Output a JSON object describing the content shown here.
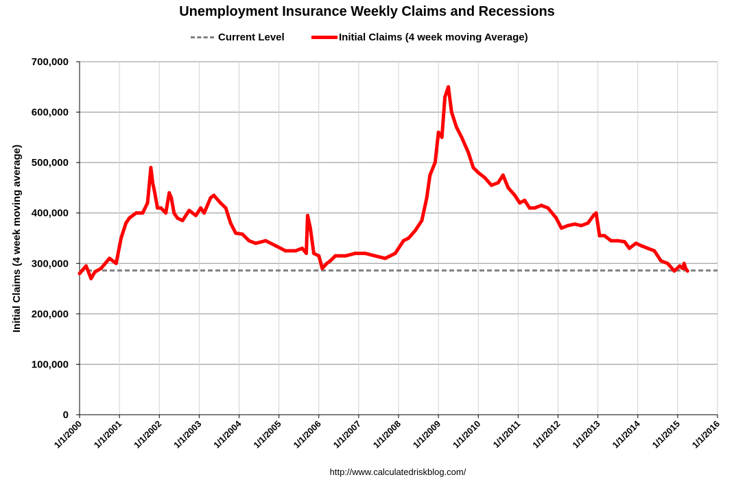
{
  "chart_data": {
    "type": "line",
    "title": "Unemployment Insurance Weekly Claims and Recessions",
    "ylabel": "Initial Claims (4 week moving average)",
    "xlabel": "",
    "ylim": [
      0,
      700000
    ],
    "xlim": [
      "2000-01-01",
      "2016-01-01"
    ],
    "grid": true,
    "legend_position": "top",
    "y_tick_labels": [
      "0",
      "100,000",
      "200,000",
      "300,000",
      "400,000",
      "500,000",
      "600,000",
      "700,000"
    ],
    "x_tick_labels": [
      "1/1/2000",
      "1/1/2001",
      "1/1/2002",
      "1/1/2003",
      "1/1/2004",
      "1/1/2005",
      "1/1/2006",
      "1/1/2007",
      "1/1/2008",
      "1/1/2009",
      "1/1/2010",
      "1/1/2011",
      "1/1/2012",
      "1/1/2013",
      "1/1/2014",
      "1/1/2015",
      "1/1/2016"
    ],
    "series": [
      {
        "name": "Current Level",
        "color": "#7f7f7f",
        "style": "dashed",
        "y": 286000
      },
      {
        "name": "Initial Claims (4 week moving Average)",
        "color": "#ff0000",
        "style": "solid",
        "x": [
          "2000-01-01",
          "2000-03-01",
          "2000-04-15",
          "2000-05-20",
          "2000-07-15",
          "2000-10-01",
          "2000-12-01",
          "2001-01-15",
          "2001-03-01",
          "2001-04-01",
          "2001-06-01",
          "2001-08-01",
          "2001-09-15",
          "2001-10-15",
          "2001-11-01",
          "2001-11-20",
          "2001-12-15",
          "2002-01-15",
          "2002-03-01",
          "2002-04-01",
          "2002-04-20",
          "2002-05-15",
          "2002-06-15",
          "2002-08-01",
          "2002-10-01",
          "2002-12-01",
          "2003-01-15",
          "2003-02-15",
          "2003-04-15",
          "2003-05-15",
          "2003-07-15",
          "2003-09-01",
          "2003-10-15",
          "2003-12-01",
          "2004-02-01",
          "2004-04-01",
          "2004-06-01",
          "2004-09-01",
          "2004-12-01",
          "2005-01-15",
          "2005-03-01",
          "2005-06-01",
          "2005-08-01",
          "2005-09-08",
          "2005-09-20",
          "2005-10-15",
          "2005-11-15",
          "2006-01-01",
          "2006-02-01",
          "2006-03-15",
          "2006-04-15",
          "2006-06-01",
          "2006-09-01",
          "2006-12-01",
          "2007-03-01",
          "2007-06-01",
          "2007-09-01",
          "2007-12-01",
          "2008-02-15",
          "2008-04-01",
          "2008-06-01",
          "2008-08-01",
          "2008-09-15",
          "2008-10-15",
          "2008-12-01",
          "2009-01-01",
          "2009-02-01",
          "2009-03-01",
          "2009-04-01",
          "2009-05-01",
          "2009-06-15",
          "2009-08-01",
          "2009-10-01",
          "2009-11-15",
          "2010-01-01",
          "2010-03-01",
          "2010-05-01",
          "2010-07-01",
          "2010-08-15",
          "2010-10-01",
          "2010-12-01",
          "2011-01-15",
          "2011-03-01",
          "2011-04-15",
          "2011-06-01",
          "2011-08-01",
          "2011-10-01",
          "2011-12-15",
          "2012-02-01",
          "2012-04-01",
          "2012-06-01",
          "2012-08-01",
          "2012-10-01",
          "2012-11-20",
          "2012-12-15",
          "2013-01-15",
          "2013-03-01",
          "2013-05-01",
          "2013-07-01",
          "2013-09-01",
          "2013-10-15",
          "2013-12-15",
          "2014-02-01",
          "2014-04-01",
          "2014-06-01",
          "2014-08-01",
          "2014-10-01",
          "2014-12-01",
          "2015-01-20",
          "2015-02-15",
          "2015-03-01",
          "2015-03-15",
          "2015-04-01"
        ],
        "values": [
          280000,
          295000,
          270000,
          283000,
          290000,
          310000,
          300000,
          350000,
          380000,
          390000,
          400000,
          400000,
          420000,
          490000,
          460000,
          440000,
          410000,
          410000,
          400000,
          440000,
          430000,
          400000,
          390000,
          385000,
          405000,
          395000,
          410000,
          400000,
          430000,
          435000,
          420000,
          410000,
          380000,
          360000,
          358000,
          345000,
          340000,
          345000,
          335000,
          330000,
          325000,
          325000,
          330000,
          320000,
          395000,
          370000,
          320000,
          315000,
          290000,
          300000,
          305000,
          315000,
          315000,
          320000,
          320000,
          315000,
          310000,
          320000,
          345000,
          350000,
          365000,
          385000,
          430000,
          475000,
          500000,
          560000,
          550000,
          630000,
          650000,
          600000,
          570000,
          550000,
          520000,
          490000,
          480000,
          470000,
          455000,
          460000,
          475000,
          450000,
          435000,
          420000,
          425000,
          410000,
          410000,
          415000,
          410000,
          390000,
          370000,
          375000,
          378000,
          375000,
          380000,
          395000,
          400000,
          355000,
          355000,
          345000,
          345000,
          343000,
          330000,
          340000,
          335000,
          330000,
          325000,
          305000,
          300000,
          285000,
          295000,
          290000,
          300000,
          290000,
          285000
        ]
      }
    ]
  },
  "footer": {
    "url": "http://www.calculatedriskblog.com/"
  }
}
